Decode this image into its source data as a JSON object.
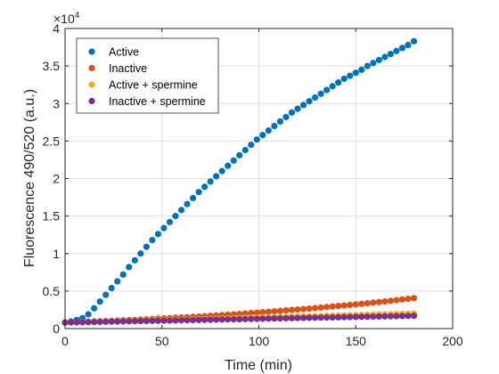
{
  "chart_data": {
    "type": "scatter",
    "title": "",
    "xlabel": "Time (min)",
    "ylabel": "Fluorescence 490/520 (a.u.)",
    "xlim": [
      0,
      200
    ],
    "ylim": [
      0,
      40000
    ],
    "y_exponent_label": "×10",
    "y_exponent_power": "4",
    "xticks": [
      0,
      50,
      100,
      150,
      200
    ],
    "xtick_labels": [
      "0",
      "50",
      "100",
      "150",
      "200"
    ],
    "yticks": [
      0,
      5000,
      10000,
      15000,
      20000,
      25000,
      30000,
      35000,
      40000
    ],
    "ytick_labels": [
      "0",
      "0.5",
      "1",
      "1.5",
      "2",
      "2.5",
      "3",
      "3.5",
      "4"
    ],
    "grid": true,
    "legend_position": "top-left",
    "x": [
      0,
      3,
      6,
      9,
      12,
      15,
      18,
      21,
      24,
      27,
      30,
      33,
      36,
      39,
      42,
      45,
      48,
      51,
      54,
      57,
      60,
      63,
      66,
      69,
      72,
      75,
      78,
      81,
      84,
      87,
      90,
      93,
      96,
      99,
      102,
      105,
      108,
      111,
      114,
      117,
      120,
      123,
      126,
      129,
      132,
      135,
      138,
      141,
      144,
      147,
      150,
      153,
      156,
      159,
      162,
      165,
      168,
      171,
      174,
      177,
      180
    ],
    "series": [
      {
        "name": "Active",
        "color": "#0072bd",
        "values": [
          800,
          950,
          1150,
          1400,
          1900,
          2700,
          3600,
          4500,
          5400,
          6300,
          7200,
          8200,
          9100,
          10000,
          10900,
          11800,
          12600,
          13400,
          14200,
          15000,
          15800,
          16600,
          17400,
          18200,
          18900,
          19600,
          20300,
          21000,
          21700,
          22400,
          23100,
          23800,
          24500,
          25200,
          25800,
          26400,
          27000,
          27600,
          28200,
          28800,
          29300,
          29800,
          30300,
          30800,
          31300,
          31800,
          32300,
          32800,
          33300,
          33700,
          34100,
          34500,
          35000,
          35400,
          35800,
          36200,
          36600,
          37000,
          37400,
          37800,
          38300
        ]
      },
      {
        "name": "Inactive",
        "color": "#d95319",
        "values": [
          800,
          830,
          860,
          890,
          920,
          950,
          980,
          1010,
          1040,
          1070,
          1100,
          1130,
          1160,
          1200,
          1240,
          1280,
          1320,
          1360,
          1400,
          1440,
          1480,
          1520,
          1560,
          1600,
          1650,
          1700,
          1750,
          1800,
          1850,
          1900,
          1950,
          2000,
          2060,
          2120,
          2180,
          2240,
          2300,
          2360,
          2420,
          2480,
          2540,
          2600,
          2660,
          2730,
          2800,
          2870,
          2940,
          3010,
          3080,
          3150,
          3220,
          3300,
          3380,
          3460,
          3540,
          3620,
          3700,
          3790,
          3880,
          3970,
          4060
        ]
      },
      {
        "name": "Active + spermine",
        "color": "#edb120",
        "values": [
          800,
          820,
          840,
          860,
          880,
          900,
          920,
          940,
          960,
          980,
          1000,
          1020,
          1040,
          1060,
          1080,
          1100,
          1120,
          1140,
          1160,
          1180,
          1200,
          1220,
          1240,
          1260,
          1280,
          1300,
          1320,
          1340,
          1360,
          1380,
          1400,
          1420,
          1440,
          1460,
          1480,
          1500,
          1520,
          1540,
          1560,
          1580,
          1600,
          1620,
          1640,
          1660,
          1680,
          1700,
          1720,
          1740,
          1760,
          1780,
          1800,
          1820,
          1840,
          1860,
          1880,
          1900,
          1920,
          1940,
          1960,
          1980,
          2000
        ]
      },
      {
        "name": "Inactive + spermine",
        "color": "#7e2f8e",
        "values": [
          800,
          815,
          830,
          845,
          860,
          875,
          890,
          905,
          920,
          935,
          950,
          965,
          980,
          995,
          1010,
          1025,
          1040,
          1055,
          1070,
          1085,
          1100,
          1115,
          1130,
          1145,
          1160,
          1175,
          1190,
          1205,
          1220,
          1235,
          1250,
          1265,
          1280,
          1295,
          1310,
          1325,
          1340,
          1355,
          1370,
          1385,
          1400,
          1415,
          1430,
          1445,
          1460,
          1475,
          1490,
          1505,
          1520,
          1535,
          1550,
          1565,
          1580,
          1595,
          1610,
          1625,
          1640,
          1655,
          1670,
          1685,
          1700
        ]
      }
    ]
  }
}
